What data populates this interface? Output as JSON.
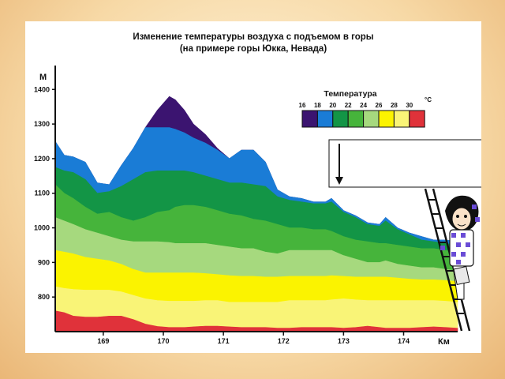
{
  "chart_data": {
    "type": "area",
    "title": "Изменение температуры воздуха с подъемом в горы",
    "subtitle": "(на примере горы Юкка, Невада)",
    "ylabel": "М",
    "xlabel": "Км",
    "xlim": [
      168.2,
      174.9
    ],
    "ylim": [
      700,
      1460
    ],
    "yticks": [
      800,
      900,
      1000,
      1100,
      1200,
      1300,
      1400
    ],
    "xticks": [
      169,
      170,
      171,
      172,
      173,
      174
    ],
    "legend": {
      "title": "Температура",
      "unit": "°C",
      "labels": [
        "16",
        "18",
        "20",
        "22",
        "24",
        "26",
        "28",
        "30"
      ],
      "placement": "top-right"
    },
    "bands": [
      {
        "range": "16–18",
        "color": "#3b1470"
      },
      {
        "range": "18–20",
        "color": "#1a7cd6"
      },
      {
        "range": "20–22",
        "color": "#139546"
      },
      {
        "range": "22–24",
        "color": "#46b43b"
      },
      {
        "range": "24–26",
        "color": "#a6d97e"
      },
      {
        "range": "26–28",
        "color": "#fbf300"
      },
      {
        "range": "28–30",
        "color": "#f9f477"
      },
      {
        "range": "30+",
        "color": "#e0323a"
      }
    ],
    "x": [
      168.2,
      168.35,
      168.5,
      168.7,
      168.9,
      169.1,
      169.3,
      169.5,
      169.7,
      169.9,
      170.1,
      170.2,
      170.35,
      170.5,
      170.7,
      170.9,
      171.1,
      171.3,
      171.5,
      171.7,
      171.9,
      172.1,
      172.3,
      172.5,
      172.7,
      172.8,
      173.0,
      173.2,
      173.4,
      173.6,
      173.7,
      173.9,
      174.1,
      174.3,
      174.5,
      174.7,
      174.9
    ],
    "boundaries": [
      {
        "name": "top",
        "values": [
          1250,
          1210,
          1205,
          1190,
          1130,
          1125,
          1180,
          1230,
          1290,
          1340,
          1380,
          1370,
          1340,
          1300,
          1270,
          1230,
          1200,
          1225,
          1225,
          1190,
          1110,
          1090,
          1085,
          1075,
          1075,
          1085,
          1050,
          1035,
          1015,
          1010,
          1030,
          1000,
          985,
          975,
          965,
          965,
          960
        ]
      },
      {
        "name": "18",
        "values": [
          1250,
          1210,
          1205,
          1190,
          1130,
          1125,
          1180,
          1230,
          1290,
          1290,
          1290,
          1285,
          1275,
          1260,
          1245,
          1225,
          1200,
          1225,
          1225,
          1190,
          1110,
          1090,
          1085,
          1075,
          1075,
          1085,
          1050,
          1035,
          1015,
          1010,
          1030,
          1000,
          985,
          975,
          965,
          965,
          960
        ]
      },
      {
        "name": "20",
        "values": [
          1175,
          1165,
          1160,
          1140,
          1100,
          1105,
          1120,
          1140,
          1160,
          1165,
          1165,
          1165,
          1165,
          1160,
          1150,
          1140,
          1130,
          1130,
          1125,
          1120,
          1090,
          1080,
          1075,
          1070,
          1070,
          1075,
          1045,
          1030,
          1010,
          1005,
          1020,
          995,
          980,
          965,
          960,
          955,
          950
        ]
      },
      {
        "name": "22",
        "values": [
          1125,
          1100,
          1085,
          1060,
          1040,
          1045,
          1030,
          1020,
          1030,
          1045,
          1050,
          1060,
          1065,
          1065,
          1060,
          1050,
          1040,
          1035,
          1025,
          1020,
          1010,
          1000,
          1000,
          995,
          995,
          990,
          975,
          965,
          960,
          955,
          955,
          950,
          945,
          940,
          940,
          935,
          930
        ]
      },
      {
        "name": "24",
        "values": [
          1030,
          1020,
          1010,
          995,
          985,
          975,
          965,
          960,
          960,
          960,
          958,
          955,
          955,
          955,
          955,
          950,
          945,
          940,
          940,
          930,
          925,
          935,
          935,
          935,
          935,
          935,
          920,
          910,
          900,
          900,
          905,
          895,
          890,
          885,
          885,
          880,
          875
        ]
      },
      {
        "name": "26",
        "values": [
          935,
          930,
          925,
          915,
          910,
          905,
          895,
          880,
          870,
          870,
          870,
          870,
          870,
          870,
          868,
          865,
          862,
          860,
          860,
          858,
          858,
          860,
          860,
          860,
          860,
          862,
          860,
          858,
          858,
          858,
          858,
          855,
          852,
          850,
          850,
          848,
          845
        ]
      },
      {
        "name": "28",
        "values": [
          830,
          825,
          822,
          820,
          820,
          820,
          815,
          805,
          795,
          790,
          788,
          788,
          788,
          788,
          790,
          790,
          785,
          785,
          785,
          785,
          785,
          790,
          790,
          790,
          790,
          792,
          795,
          792,
          790,
          790,
          790,
          790,
          790,
          790,
          790,
          788,
          785
        ]
      },
      {
        "name": "30",
        "values": [
          760,
          755,
          745,
          742,
          742,
          745,
          745,
          735,
          722,
          715,
          712,
          712,
          712,
          714,
          716,
          716,
          714,
          712,
          712,
          712,
          710,
          710,
          712,
          712,
          712,
          712,
          710,
          712,
          716,
          712,
          710,
          710,
          710,
          712,
          714,
          712,
          710
        ]
      },
      {
        "name": "bottom",
        "values": [
          700,
          700,
          700,
          700,
          700,
          700,
          700,
          700,
          700,
          700,
          700,
          700,
          700,
          700,
          700,
          700,
          700,
          700,
          700,
          700,
          700,
          700,
          700,
          700,
          700,
          700,
          700,
          700,
          700,
          700,
          700,
          700,
          700,
          700,
          700,
          700,
          700
        ]
      }
    ]
  }
}
